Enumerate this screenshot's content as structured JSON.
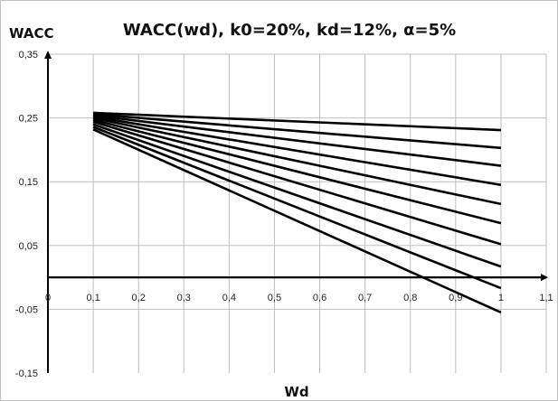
{
  "chart_data": {
    "type": "line",
    "title": "WACC(wd), k0=20%, kd=12%, α=5%",
    "xlabel": "Wd",
    "ylabel": "WACC",
    "xlim": [
      0,
      1.1
    ],
    "ylim": [
      -0.15,
      0.35
    ],
    "x_ticks": [
      "0",
      "0,1",
      "0,2",
      "0,3",
      "0,4",
      "0,5",
      "0,6",
      "0,7",
      "0,8",
      "0,9",
      "1",
      "1,1"
    ],
    "y_ticks": [
      "0,35",
      "0,25",
      "0,15",
      "0,05",
      "-0,05",
      "-0,15"
    ],
    "y_tick_values": [
      0.35,
      0.25,
      0.15,
      0.05,
      -0.05,
      -0.15
    ],
    "grid": true,
    "line_color": "#000000",
    "grid_color": "#bfbfbf",
    "x": [
      0.1,
      1.0
    ],
    "series": [
      {
        "values": [
          0.258,
          0.231
        ]
      },
      {
        "values": [
          0.256,
          0.203
        ]
      },
      {
        "values": [
          0.254,
          0.175
        ]
      },
      {
        "values": [
          0.252,
          0.145
        ]
      },
      {
        "values": [
          0.25,
          0.115
        ]
      },
      {
        "values": [
          0.247,
          0.085
        ]
      },
      {
        "values": [
          0.244,
          0.052
        ]
      },
      {
        "values": [
          0.24,
          0.017
        ]
      },
      {
        "values": [
          0.236,
          -0.017
        ]
      },
      {
        "values": [
          0.232,
          -0.055
        ]
      }
    ]
  }
}
